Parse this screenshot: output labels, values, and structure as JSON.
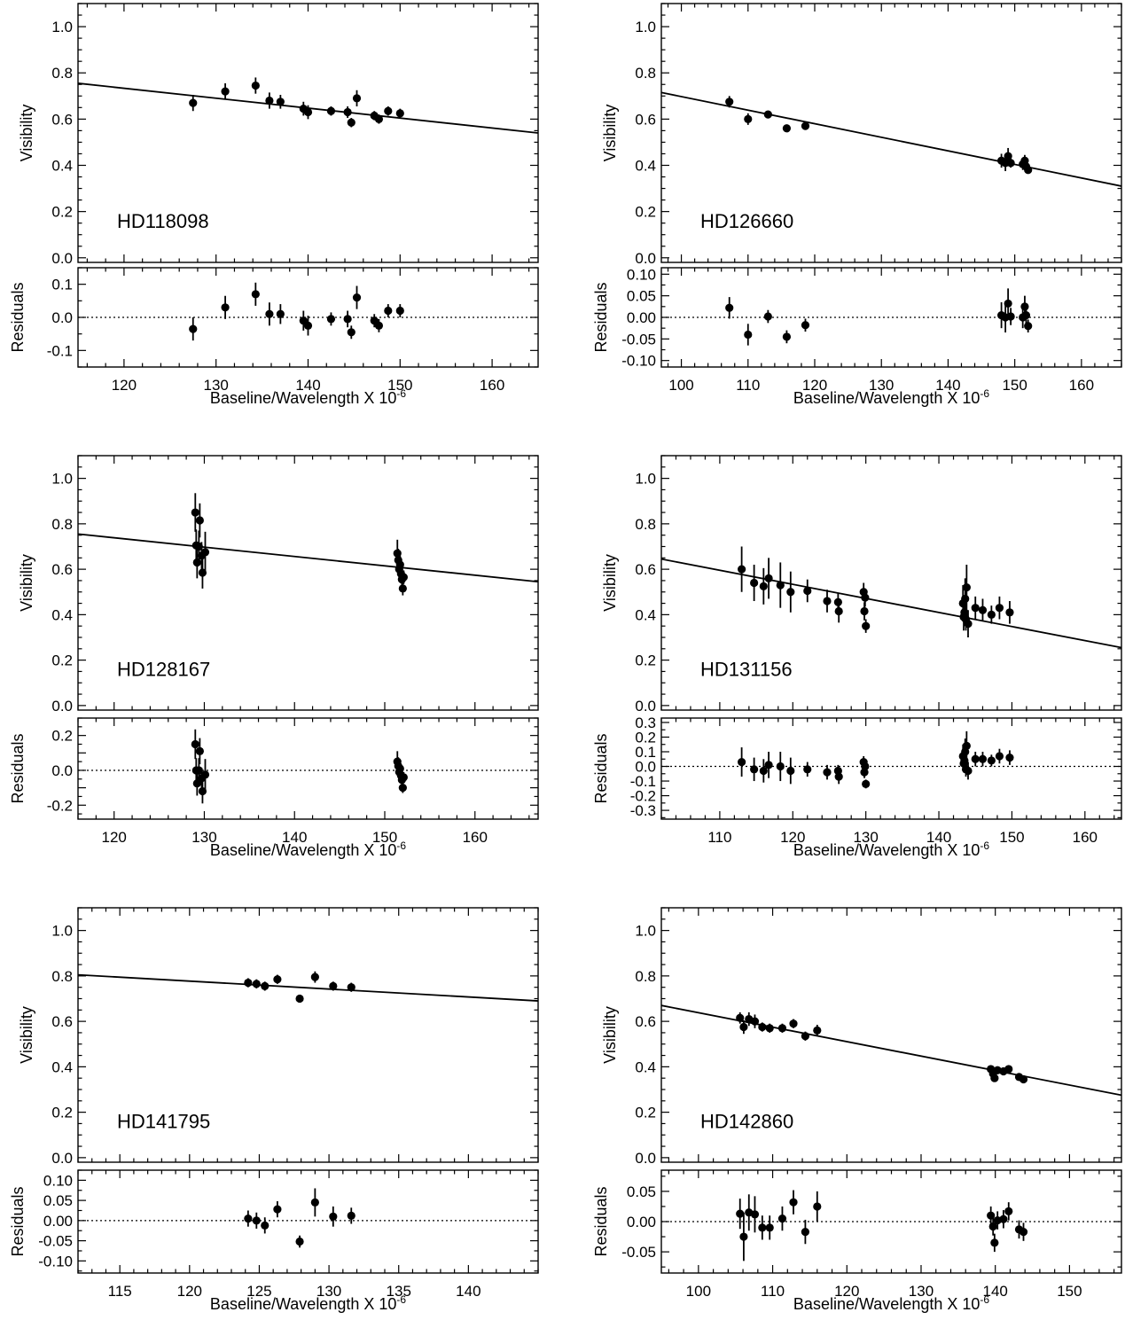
{
  "figure": {
    "x_axis_label": "Baseline/Wavelength X 10",
    "x_axis_exponent": "-6"
  },
  "chart_data": [
    {
      "type": "scatter",
      "star": "HD118098",
      "ylabel_top": "Visibility",
      "ylabel_bottom": "Residuals",
      "xlabel": "Baseline/Wavelength X 10^-6",
      "xlim": [
        115,
        165
      ],
      "xticks": [
        120,
        130,
        140,
        150,
        160
      ],
      "xtick_labels": [
        "120",
        "130",
        "140",
        "150",
        "160"
      ],
      "top_ylim": [
        -0.02,
        1.1
      ],
      "top_yticks": [
        0.0,
        0.2,
        0.4,
        0.6,
        0.8,
        1.0
      ],
      "top_ytick_labels": [
        "0.0",
        "0.2",
        "0.4",
        "0.6",
        "0.8",
        "1.0"
      ],
      "res_ylim": [
        -0.15,
        0.15
      ],
      "res_yticks": [
        -0.1,
        0.0,
        0.1
      ],
      "res_ytick_labels": [
        "-0.1",
        "0.0",
        "0.1"
      ],
      "fit_line": {
        "x": [
          115,
          165
        ],
        "y": [
          0.755,
          0.54
        ]
      },
      "points": [
        {
          "x": 127.5,
          "v": 0.67,
          "ve": 0.035,
          "r": -0.035,
          "re": 0.035
        },
        {
          "x": 131.0,
          "v": 0.72,
          "ve": 0.035,
          "r": 0.03,
          "re": 0.035
        },
        {
          "x": 134.3,
          "v": 0.745,
          "ve": 0.035,
          "r": 0.07,
          "re": 0.035
        },
        {
          "x": 135.8,
          "v": 0.68,
          "ve": 0.035,
          "r": 0.01,
          "re": 0.035
        },
        {
          "x": 137.0,
          "v": 0.675,
          "ve": 0.03,
          "r": 0.01,
          "re": 0.03
        },
        {
          "x": 139.5,
          "v": 0.645,
          "ve": 0.03,
          "r": -0.01,
          "re": 0.03
        },
        {
          "x": 140.0,
          "v": 0.63,
          "ve": 0.03,
          "r": -0.025,
          "re": 0.03
        },
        {
          "x": 142.5,
          "v": 0.635,
          "ve": 0.02,
          "r": -0.005,
          "re": 0.02
        },
        {
          "x": 144.3,
          "v": 0.63,
          "ve": 0.025,
          "r": -0.005,
          "re": 0.025
        },
        {
          "x": 144.7,
          "v": 0.585,
          "ve": 0.02,
          "r": -0.045,
          "re": 0.02
        },
        {
          "x": 145.3,
          "v": 0.69,
          "ve": 0.035,
          "r": 0.06,
          "re": 0.035
        },
        {
          "x": 147.2,
          "v": 0.615,
          "ve": 0.02,
          "r": -0.01,
          "re": 0.02
        },
        {
          "x": 147.7,
          "v": 0.6,
          "ve": 0.02,
          "r": -0.025,
          "re": 0.02
        },
        {
          "x": 148.7,
          "v": 0.635,
          "ve": 0.02,
          "r": 0.02,
          "re": 0.02
        },
        {
          "x": 150.0,
          "v": 0.625,
          "ve": 0.02,
          "r": 0.02,
          "re": 0.02
        }
      ]
    },
    {
      "type": "scatter",
      "star": "HD126660",
      "ylabel_top": "Visibility",
      "ylabel_bottom": "Residuals",
      "xlabel": "Baseline/Wavelength X 10^-6",
      "xlim": [
        97,
        166
      ],
      "xticks": [
        100,
        110,
        120,
        130,
        140,
        150,
        160
      ],
      "xtick_labels": [
        "100",
        "110",
        "120",
        "130",
        "140",
        "150",
        "160"
      ],
      "top_ylim": [
        -0.02,
        1.1
      ],
      "top_yticks": [
        0.0,
        0.2,
        0.4,
        0.6,
        0.8,
        1.0
      ],
      "top_ytick_labels": [
        "0.0",
        "0.2",
        "0.4",
        "0.6",
        "0.8",
        "1.0"
      ],
      "res_ylim": [
        -0.115,
        0.115
      ],
      "res_yticks": [
        -0.1,
        -0.05,
        0.0,
        0.05,
        0.1
      ],
      "res_ytick_labels": [
        "-0.10",
        "-0.05",
        "0.00",
        "0.05",
        "0.10"
      ],
      "fit_line": {
        "x": [
          97,
          166
        ],
        "y": [
          0.715,
          0.31
        ]
      },
      "points": [
        {
          "x": 107.2,
          "v": 0.675,
          "ve": 0.025,
          "r": 0.022,
          "re": 0.025
        },
        {
          "x": 110.0,
          "v": 0.6,
          "ve": 0.025,
          "r": -0.04,
          "re": 0.025
        },
        {
          "x": 113.0,
          "v": 0.62,
          "ve": 0.015,
          "r": 0.002,
          "re": 0.015
        },
        {
          "x": 115.8,
          "v": 0.56,
          "ve": 0.015,
          "r": -0.045,
          "re": 0.015
        },
        {
          "x": 118.6,
          "v": 0.57,
          "ve": 0.015,
          "r": -0.018,
          "re": 0.015
        },
        {
          "x": 148.0,
          "v": 0.42,
          "ve": 0.03,
          "r": 0.005,
          "re": 0.03
        },
        {
          "x": 148.6,
          "v": 0.41,
          "ve": 0.035,
          "r": 0.0,
          "re": 0.035
        },
        {
          "x": 149.0,
          "v": 0.44,
          "ve": 0.035,
          "r": 0.032,
          "re": 0.035
        },
        {
          "x": 149.4,
          "v": 0.41,
          "ve": 0.02,
          "r": 0.002,
          "re": 0.02
        },
        {
          "x": 151.2,
          "v": 0.405,
          "ve": 0.025,
          "r": 0.0,
          "re": 0.025
        },
        {
          "x": 151.5,
          "v": 0.42,
          "ve": 0.025,
          "r": 0.025,
          "re": 0.025
        },
        {
          "x": 151.7,
          "v": 0.395,
          "ve": 0.02,
          "r": 0.005,
          "re": 0.02
        },
        {
          "x": 152.0,
          "v": 0.38,
          "ve": 0.015,
          "r": -0.02,
          "re": 0.015
        }
      ]
    },
    {
      "type": "scatter",
      "star": "HD128167",
      "ylabel_top": "Visibility",
      "ylabel_bottom": "Residuals",
      "xlabel": "Baseline/Wavelength X 10^-6",
      "xlim": [
        116,
        167
      ],
      "xticks": [
        120,
        130,
        140,
        150,
        160
      ],
      "xtick_labels": [
        "120",
        "130",
        "140",
        "150",
        "160"
      ],
      "top_ylim": [
        -0.02,
        1.1
      ],
      "top_yticks": [
        0.0,
        0.2,
        0.4,
        0.6,
        0.8,
        1.0
      ],
      "top_ytick_labels": [
        "0.0",
        "0.2",
        "0.4",
        "0.6",
        "0.8",
        "1.0"
      ],
      "res_ylim": [
        -0.28,
        0.3
      ],
      "res_yticks": [
        -0.2,
        -0.1,
        0.0,
        0.1,
        0.2
      ],
      "res_ytick_labels": [
        "-0.2",
        "",
        "0.0",
        "",
        "0.2"
      ],
      "fit_line": {
        "x": [
          116,
          167
        ],
        "y": [
          0.755,
          0.545
        ]
      },
      "points": [
        {
          "x": 129.0,
          "v": 0.85,
          "ve": 0.085,
          "r": 0.15,
          "re": 0.085
        },
        {
          "x": 129.1,
          "v": 0.705,
          "ve": 0.07,
          "r": 0.0,
          "re": 0.07
        },
        {
          "x": 129.2,
          "v": 0.63,
          "ve": 0.07,
          "r": -0.075,
          "re": 0.07
        },
        {
          "x": 129.4,
          "v": 0.7,
          "ve": 0.07,
          "r": 0.0,
          "re": 0.07
        },
        {
          "x": 129.5,
          "v": 0.815,
          "ve": 0.075,
          "r": 0.11,
          "re": 0.075
        },
        {
          "x": 129.7,
          "v": 0.66,
          "ve": 0.06,
          "r": -0.045,
          "re": 0.06
        },
        {
          "x": 129.8,
          "v": 0.585,
          "ve": 0.07,
          "r": -0.12,
          "re": 0.07
        },
        {
          "x": 130.1,
          "v": 0.675,
          "ve": 0.09,
          "r": -0.025,
          "re": 0.09
        },
        {
          "x": 151.4,
          "v": 0.67,
          "ve": 0.06,
          "r": 0.05,
          "re": 0.06
        },
        {
          "x": 151.5,
          "v": 0.64,
          "ve": 0.05,
          "r": 0.025,
          "re": 0.05
        },
        {
          "x": 151.6,
          "v": 0.6,
          "ve": 0.04,
          "r": -0.01,
          "re": 0.04
        },
        {
          "x": 151.7,
          "v": 0.62,
          "ve": 0.04,
          "r": 0.01,
          "re": 0.04
        },
        {
          "x": 151.8,
          "v": 0.58,
          "ve": 0.03,
          "r": -0.03,
          "re": 0.03
        },
        {
          "x": 151.9,
          "v": 0.555,
          "ve": 0.03,
          "r": -0.055,
          "re": 0.03
        },
        {
          "x": 152.0,
          "v": 0.515,
          "ve": 0.03,
          "r": -0.1,
          "re": 0.03
        },
        {
          "x": 152.1,
          "v": 0.565,
          "ve": 0.03,
          "r": -0.04,
          "re": 0.03
        }
      ]
    },
    {
      "type": "scatter",
      "star": "HD131156",
      "ylabel_top": "Visibility",
      "ylabel_bottom": "Residuals",
      "xlabel": "Baseline/Wavelength X 10^-6",
      "xlim": [
        102,
        165
      ],
      "xticks": [
        110,
        120,
        130,
        140,
        150,
        160
      ],
      "xtick_labels": [
        "110",
        "120",
        "130",
        "140",
        "150",
        "160"
      ],
      "top_ylim": [
        -0.02,
        1.1
      ],
      "top_yticks": [
        0.0,
        0.2,
        0.4,
        0.6,
        0.8,
        1.0
      ],
      "top_ytick_labels": [
        "0.0",
        "0.2",
        "0.4",
        "0.6",
        "0.8",
        "1.0"
      ],
      "res_ylim": [
        -0.36,
        0.33
      ],
      "res_yticks": [
        -0.3,
        -0.2,
        -0.1,
        0.0,
        0.1,
        0.2,
        0.3
      ],
      "res_ytick_labels": [
        "-0.3",
        "-0.2",
        "-0.1",
        "0.0",
        "0.1",
        "0.2",
        "0.3"
      ],
      "fit_line": {
        "x": [
          102,
          165
        ],
        "y": [
          0.645,
          0.255
        ]
      },
      "points": [
        {
          "x": 113.0,
          "v": 0.6,
          "ve": 0.1,
          "r": 0.03,
          "re": 0.1
        },
        {
          "x": 114.7,
          "v": 0.54,
          "ve": 0.08,
          "r": -0.02,
          "re": 0.08
        },
        {
          "x": 116.0,
          "v": 0.525,
          "ve": 0.08,
          "r": -0.03,
          "re": 0.08
        },
        {
          "x": 116.7,
          "v": 0.56,
          "ve": 0.09,
          "r": 0.01,
          "re": 0.09
        },
        {
          "x": 118.3,
          "v": 0.53,
          "ve": 0.1,
          "r": 0.0,
          "re": 0.1
        },
        {
          "x": 119.7,
          "v": 0.5,
          "ve": 0.09,
          "r": -0.03,
          "re": 0.09
        },
        {
          "x": 122.0,
          "v": 0.505,
          "ve": 0.05,
          "r": -0.02,
          "re": 0.05
        },
        {
          "x": 124.7,
          "v": 0.46,
          "ve": 0.05,
          "r": -0.04,
          "re": 0.05
        },
        {
          "x": 126.2,
          "v": 0.455,
          "ve": 0.04,
          "r": -0.03,
          "re": 0.04
        },
        {
          "x": 126.3,
          "v": 0.415,
          "ve": 0.05,
          "r": -0.07,
          "re": 0.05
        },
        {
          "x": 129.7,
          "v": 0.5,
          "ve": 0.04,
          "r": 0.03,
          "re": 0.04
        },
        {
          "x": 129.8,
          "v": 0.415,
          "ve": 0.04,
          "r": -0.04,
          "re": 0.04
        },
        {
          "x": 129.9,
          "v": 0.475,
          "ve": 0.04,
          "r": 0.0,
          "re": 0.04
        },
        {
          "x": 130.0,
          "v": 0.35,
          "ve": 0.03,
          "r": -0.12,
          "re": 0.03
        },
        {
          "x": 143.3,
          "v": 0.45,
          "ve": 0.08,
          "r": 0.07,
          "re": 0.08
        },
        {
          "x": 143.4,
          "v": 0.39,
          "ve": 0.06,
          "r": 0.02,
          "re": 0.06
        },
        {
          "x": 143.5,
          "v": 0.41,
          "ve": 0.06,
          "r": 0.04,
          "re": 0.06
        },
        {
          "x": 143.6,
          "v": 0.47,
          "ve": 0.09,
          "r": 0.1,
          "re": 0.09
        },
        {
          "x": 143.7,
          "v": 0.38,
          "ve": 0.05,
          "r": -0.02,
          "re": 0.05
        },
        {
          "x": 143.8,
          "v": 0.52,
          "ve": 0.1,
          "r": 0.14,
          "re": 0.1
        },
        {
          "x": 144.0,
          "v": 0.36,
          "ve": 0.06,
          "r": -0.03,
          "re": 0.06
        },
        {
          "x": 145.0,
          "v": 0.43,
          "ve": 0.05,
          "r": 0.05,
          "re": 0.05
        },
        {
          "x": 146.0,
          "v": 0.42,
          "ve": 0.05,
          "r": 0.05,
          "re": 0.05
        },
        {
          "x": 147.2,
          "v": 0.4,
          "ve": 0.04,
          "r": 0.04,
          "re": 0.04
        },
        {
          "x": 148.3,
          "v": 0.43,
          "ve": 0.05,
          "r": 0.07,
          "re": 0.05
        },
        {
          "x": 149.7,
          "v": 0.41,
          "ve": 0.05,
          "r": 0.06,
          "re": 0.05
        }
      ]
    },
    {
      "type": "scatter",
      "star": "HD141795",
      "ylabel_top": "Visibility",
      "ylabel_bottom": "Residuals",
      "xlabel": "Baseline/Wavelength X 10^-6",
      "xlim": [
        112,
        145
      ],
      "xticks": [
        115,
        120,
        125,
        130,
        135,
        140
      ],
      "xtick_labels": [
        "115",
        "120",
        "125",
        "130",
        "135",
        "140"
      ],
      "top_ylim": [
        -0.02,
        1.1
      ],
      "top_yticks": [
        0.0,
        0.2,
        0.4,
        0.6,
        0.8,
        1.0
      ],
      "top_ytick_labels": [
        "0.0",
        "0.2",
        "0.4",
        "0.6",
        "0.8",
        "1.0"
      ],
      "res_ylim": [
        -0.13,
        0.125
      ],
      "res_yticks": [
        -0.1,
        -0.05,
        0.0,
        0.05,
        0.1
      ],
      "res_ytick_labels": [
        "-0.10",
        "-0.05",
        "0.00",
        "0.05",
        "0.10"
      ],
      "fit_line": {
        "x": [
          112,
          145
        ],
        "y": [
          0.805,
          0.69
        ]
      },
      "points": [
        {
          "x": 124.2,
          "v": 0.77,
          "ve": 0.02,
          "r": 0.005,
          "re": 0.02
        },
        {
          "x": 124.8,
          "v": 0.765,
          "ve": 0.02,
          "r": 0.0,
          "re": 0.02
        },
        {
          "x": 125.4,
          "v": 0.755,
          "ve": 0.02,
          "r": -0.012,
          "re": 0.02
        },
        {
          "x": 126.3,
          "v": 0.785,
          "ve": 0.02,
          "r": 0.028,
          "re": 0.02
        },
        {
          "x": 127.9,
          "v": 0.7,
          "ve": 0.015,
          "r": -0.052,
          "re": 0.015
        },
        {
          "x": 129.0,
          "v": 0.795,
          "ve": 0.025,
          "r": 0.045,
          "re": 0.035
        },
        {
          "x": 130.3,
          "v": 0.755,
          "ve": 0.02,
          "r": 0.01,
          "re": 0.025
        },
        {
          "x": 131.6,
          "v": 0.75,
          "ve": 0.02,
          "r": 0.012,
          "re": 0.02
        }
      ]
    },
    {
      "type": "scatter",
      "star": "HD142860",
      "ylabel_top": "Visibility",
      "ylabel_bottom": "Residuals",
      "xlabel": "Baseline/Wavelength X 10^-6",
      "xlim": [
        95,
        157
      ],
      "xticks": [
        100,
        110,
        120,
        130,
        140,
        150
      ],
      "xtick_labels": [
        "100",
        "110",
        "120",
        "130",
        "140",
        "150"
      ],
      "top_ylim": [
        -0.02,
        1.1
      ],
      "top_yticks": [
        0.0,
        0.2,
        0.4,
        0.6,
        0.8,
        1.0
      ],
      "top_ytick_labels": [
        "0.0",
        "0.2",
        "0.4",
        "0.6",
        "0.8",
        "1.0"
      ],
      "res_ylim": [
        -0.085,
        0.085
      ],
      "res_yticks": [
        -0.05,
        0.0,
        0.05
      ],
      "res_ytick_labels": [
        "-0.05",
        "0.00",
        "0.05"
      ],
      "fit_line": {
        "x": [
          95,
          157
        ],
        "y": [
          0.67,
          0.275
        ]
      },
      "points": [
        {
          "x": 105.6,
          "v": 0.615,
          "ve": 0.025,
          "r": 0.013,
          "re": 0.025
        },
        {
          "x": 106.1,
          "v": 0.575,
          "ve": 0.03,
          "r": -0.025,
          "re": 0.04
        },
        {
          "x": 106.8,
          "v": 0.61,
          "ve": 0.03,
          "r": 0.015,
          "re": 0.03
        },
        {
          "x": 107.6,
          "v": 0.6,
          "ve": 0.03,
          "r": 0.012,
          "re": 0.03
        },
        {
          "x": 108.6,
          "v": 0.575,
          "ve": 0.02,
          "r": -0.01,
          "re": 0.02
        },
        {
          "x": 109.6,
          "v": 0.57,
          "ve": 0.02,
          "r": -0.01,
          "re": 0.02
        },
        {
          "x": 111.3,
          "v": 0.57,
          "ve": 0.02,
          "r": 0.005,
          "re": 0.02
        },
        {
          "x": 112.8,
          "v": 0.59,
          "ve": 0.02,
          "r": 0.032,
          "re": 0.02
        },
        {
          "x": 114.4,
          "v": 0.535,
          "ve": 0.02,
          "r": -0.017,
          "re": 0.02
        },
        {
          "x": 116.0,
          "v": 0.56,
          "ve": 0.025,
          "r": 0.025,
          "re": 0.025
        },
        {
          "x": 139.4,
          "v": 0.39,
          "ve": 0.015,
          "r": 0.01,
          "re": 0.015
        },
        {
          "x": 139.7,
          "v": 0.37,
          "ve": 0.015,
          "r": -0.008,
          "re": 0.015
        },
        {
          "x": 139.9,
          "v": 0.35,
          "ve": 0.015,
          "r": -0.035,
          "re": 0.015
        },
        {
          "x": 140.3,
          "v": 0.385,
          "ve": 0.015,
          "r": 0.002,
          "re": 0.015
        },
        {
          "x": 141.1,
          "v": 0.38,
          "ve": 0.015,
          "r": 0.004,
          "re": 0.015
        },
        {
          "x": 141.8,
          "v": 0.39,
          "ve": 0.015,
          "r": 0.017,
          "re": 0.015
        },
        {
          "x": 143.2,
          "v": 0.355,
          "ve": 0.015,
          "r": -0.013,
          "re": 0.015
        },
        {
          "x": 143.8,
          "v": 0.345,
          "ve": 0.015,
          "r": -0.017,
          "re": 0.015
        }
      ]
    }
  ]
}
